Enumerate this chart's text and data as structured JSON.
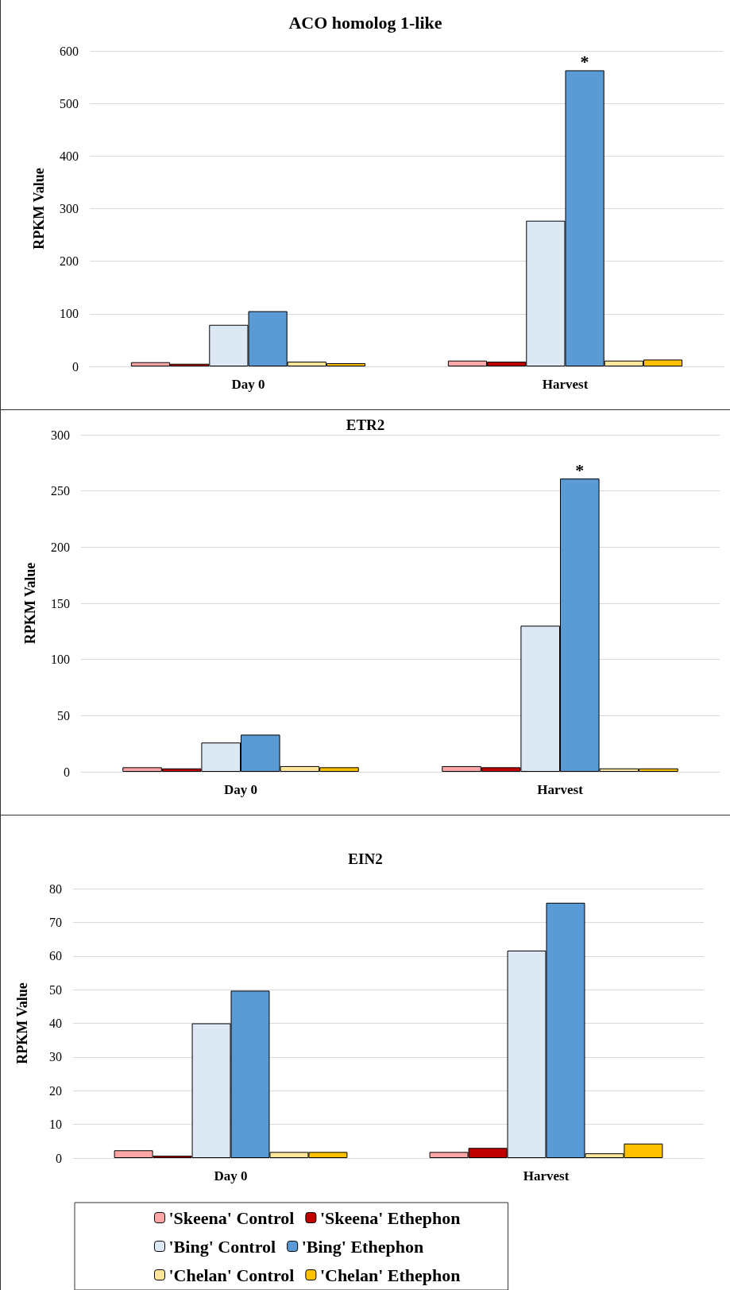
{
  "chart_data": [
    {
      "type": "bar",
      "title": "ACO homolog 1-like",
      "ylabel": "RPKM Value",
      "categories": [
        "Day 0",
        "Harvest"
      ],
      "ylim": [
        0,
        600
      ],
      "yticks": [
        0,
        100,
        200,
        300,
        400,
        500,
        600
      ],
      "grid": "y",
      "legend": false,
      "series": [
        {
          "color": "#ffa7a7",
          "values": [
            8,
            11
          ]
        },
        {
          "color": "#c00000",
          "values": [
            5,
            9
          ]
        },
        {
          "color": "#dde8f5",
          "values": [
            79,
            277
          ]
        },
        {
          "color": "#5b9bd5",
          "values": [
            105,
            563
          ]
        },
        {
          "color": "#ffe699",
          "values": [
            9,
            11
          ]
        },
        {
          "color": "#ffc000",
          "values": [
            6,
            13
          ]
        }
      ],
      "annotations": [
        {
          "text": "*",
          "x": "Harvest",
          "y": 563
        }
      ]
    },
    {
      "type": "bar",
      "title": "ETR2",
      "ylabel": "RPKM Value",
      "categories": [
        "Day 0",
        "Harvest"
      ],
      "ylim": [
        0,
        300
      ],
      "yticks": [
        0,
        50,
        100,
        150,
        200,
        250,
        300
      ],
      "grid": "y",
      "legend": false,
      "series": [
        {
          "color": "#ffa7a7",
          "values": [
            4,
            5
          ]
        },
        {
          "color": "#c00000",
          "values": [
            3,
            4
          ]
        },
        {
          "color": "#dde8f5",
          "values": [
            26,
            130
          ]
        },
        {
          "color": "#5b9bd5",
          "values": [
            33,
            261
          ]
        },
        {
          "color": "#ffe699",
          "values": [
            5,
            3
          ]
        },
        {
          "color": "#ffc000",
          "values": [
            4,
            3
          ]
        }
      ],
      "annotations": [
        {
          "text": "*",
          "x": "Harvest",
          "y": 261
        }
      ]
    },
    {
      "type": "bar",
      "title": "EIN2",
      "ylabel": "RPKM Value",
      "categories": [
        "Day 0",
        "Harvest"
      ],
      "ylim": [
        0,
        80
      ],
      "yticks": [
        0,
        10,
        20,
        30,
        40,
        50,
        60,
        70,
        80
      ],
      "grid": "y",
      "legend": "bottom",
      "series": [
        {
          "name": "'Skeena' Control",
          "color": "#ffa7a7",
          "values": [
            2.3,
            1.8
          ]
        },
        {
          "name": "'Skeena' Ethephon",
          "color": "#c00000",
          "values": [
            0.7,
            3
          ]
        },
        {
          "name": "'Bing' Control",
          "color": "#dde8f5",
          "values": [
            40,
            61.6
          ]
        },
        {
          "name": "'Bing' Ethephon",
          "color": "#5b9bd5",
          "values": [
            49.7,
            75.8
          ]
        },
        {
          "name": "'Chelan' Control",
          "color": "#ffe699",
          "values": [
            1.8,
            1.4
          ]
        },
        {
          "name": "'Chelan' Ethephon",
          "color": "#ffc000",
          "values": [
            1.8,
            4.3
          ]
        }
      ]
    }
  ]
}
